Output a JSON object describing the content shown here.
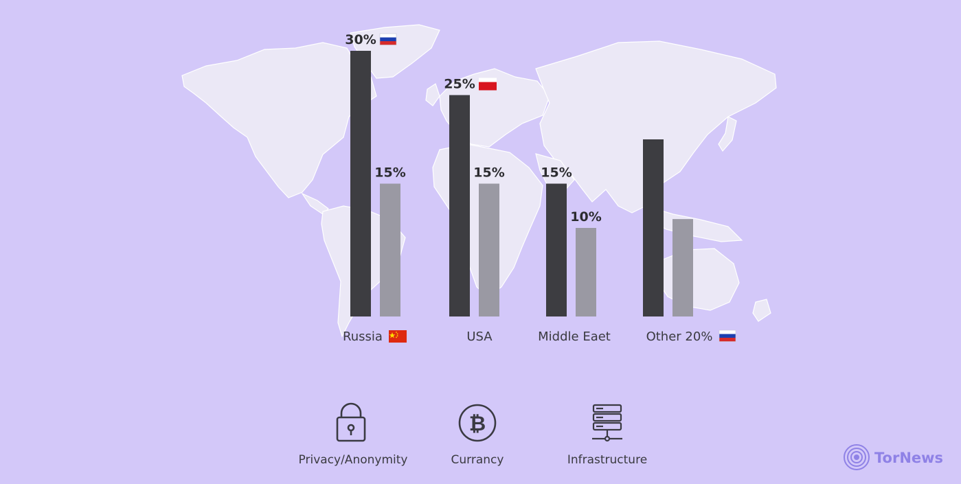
{
  "chart_data": {
    "type": "bar",
    "categories": [
      "Russia",
      "USA",
      "Middle Eaet",
      "Other 20%"
    ],
    "series": [
      {
        "values": [
          30,
          25,
          15,
          20
        ],
        "color": "#3d3d41"
      },
      {
        "values": [
          15,
          15,
          10,
          11
        ],
        "color": "#9a99a3"
      }
    ],
    "bar_labels": [
      {
        "category": "Russia",
        "series": 0,
        "text": "30%",
        "flag": "russia-flag"
      },
      {
        "category": "Russia",
        "series": 1,
        "text": "15%"
      },
      {
        "category": "USA",
        "series": 0,
        "text": "25%",
        "flag": "poland-flag"
      },
      {
        "category": "USA",
        "series": 1,
        "text": "15%"
      },
      {
        "category": "Middle Eaet",
        "series": 0,
        "text": "15%"
      },
      {
        "category": "Middle Eaet",
        "series": 1,
        "text": "10%"
      }
    ],
    "category_flags": [
      "china-flag",
      "",
      "",
      "russia-flag"
    ],
    "ylim": [
      0,
      30
    ]
  },
  "features": [
    {
      "label": "Privacy/Anonymity",
      "icon": "padlock-icon"
    },
    {
      "label": "Currancy",
      "icon": "bitcoin-icon"
    },
    {
      "label": "Infrastructure",
      "icon": "server-rack-icon"
    }
  ],
  "brand": {
    "name": "TorNews",
    "icon": "tornews-logo-icon",
    "color": "#8f82e6"
  },
  "colors": {
    "background": "#d3c8f9",
    "map_land": "#ebe8f6"
  }
}
